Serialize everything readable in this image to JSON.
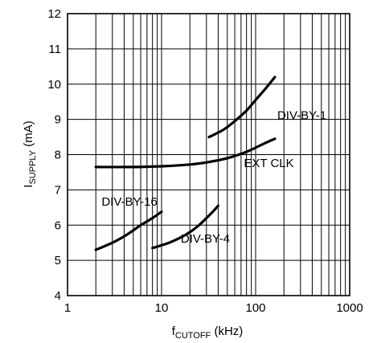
{
  "chart_data": {
    "type": "line",
    "x_scale": "log",
    "xlim": [
      1,
      1000
    ],
    "ylim": [
      4,
      12
    ],
    "grid": true,
    "xlabel": {
      "main": "f",
      "sub": "CUTOFF",
      "suffix": " (kHz)"
    },
    "ylabel": {
      "main": "I",
      "sub": "SUPPLY",
      "suffix": " (mA)"
    },
    "x_ticks": [
      1,
      10,
      100,
      1000
    ],
    "x_tick_labels": [
      "1",
      "10",
      "100",
      "1000"
    ],
    "y_ticks": [
      4,
      5,
      6,
      7,
      8,
      9,
      10,
      11,
      12
    ],
    "y_tick_labels": [
      "4",
      "5",
      "6",
      "7",
      "8",
      "9",
      "10",
      "11",
      "12"
    ],
    "series": [
      {
        "name": "DIV-BY-1",
        "x": [
          32,
          45,
          60,
          80,
          100,
          130,
          160
        ],
        "y": [
          8.5,
          8.7,
          8.95,
          9.25,
          9.55,
          9.9,
          10.2
        ]
      },
      {
        "name": "EXT CLK",
        "x": [
          2,
          5,
          10,
          20,
          30,
          50,
          80,
          120,
          160
        ],
        "y": [
          7.65,
          7.65,
          7.67,
          7.72,
          7.78,
          7.9,
          8.08,
          8.3,
          8.45
        ]
      },
      {
        "name": "DIV-BY-16",
        "x": [
          2,
          3,
          4,
          5,
          6,
          8,
          10
        ],
        "y": [
          5.3,
          5.5,
          5.68,
          5.85,
          6.0,
          6.2,
          6.38
        ]
      },
      {
        "name": "DIV-BY-4",
        "x": [
          8,
          12,
          16,
          20,
          25,
          30,
          35,
          40
        ],
        "y": [
          5.35,
          5.5,
          5.65,
          5.8,
          6.0,
          6.2,
          6.38,
          6.55
        ]
      }
    ]
  }
}
